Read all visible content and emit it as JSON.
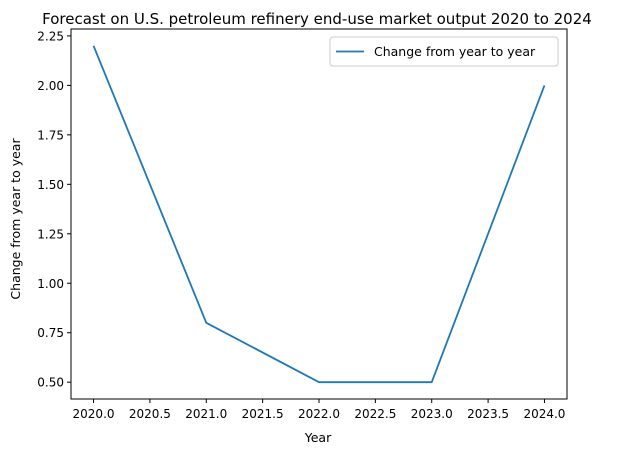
{
  "chart_data": {
    "type": "line",
    "title": "Forecast on U.S. petroleum refinery end-use market output 2020 to 2024",
    "xlabel": "Year",
    "ylabel": "Change from year to year",
    "x": [
      2020,
      2021,
      2022,
      2023,
      2024
    ],
    "series": [
      {
        "name": "Change from year to year",
        "values": [
          2.2,
          0.8,
          0.5,
          0.5,
          2.0
        ],
        "color": "#1f77b4"
      }
    ],
    "xlim": [
      2019.8,
      2024.2
    ],
    "ylim": [
      0.415,
      2.285
    ],
    "xticks": [
      "2020.0",
      "2020.5",
      "2021.0",
      "2021.5",
      "2022.0",
      "2022.5",
      "2023.0",
      "2023.5",
      "2024.0"
    ],
    "yticks": [
      "0.50",
      "0.75",
      "1.00",
      "1.25",
      "1.50",
      "1.75",
      "2.00",
      "2.25"
    ],
    "grid": false,
    "legend_position": "upper-right"
  }
}
